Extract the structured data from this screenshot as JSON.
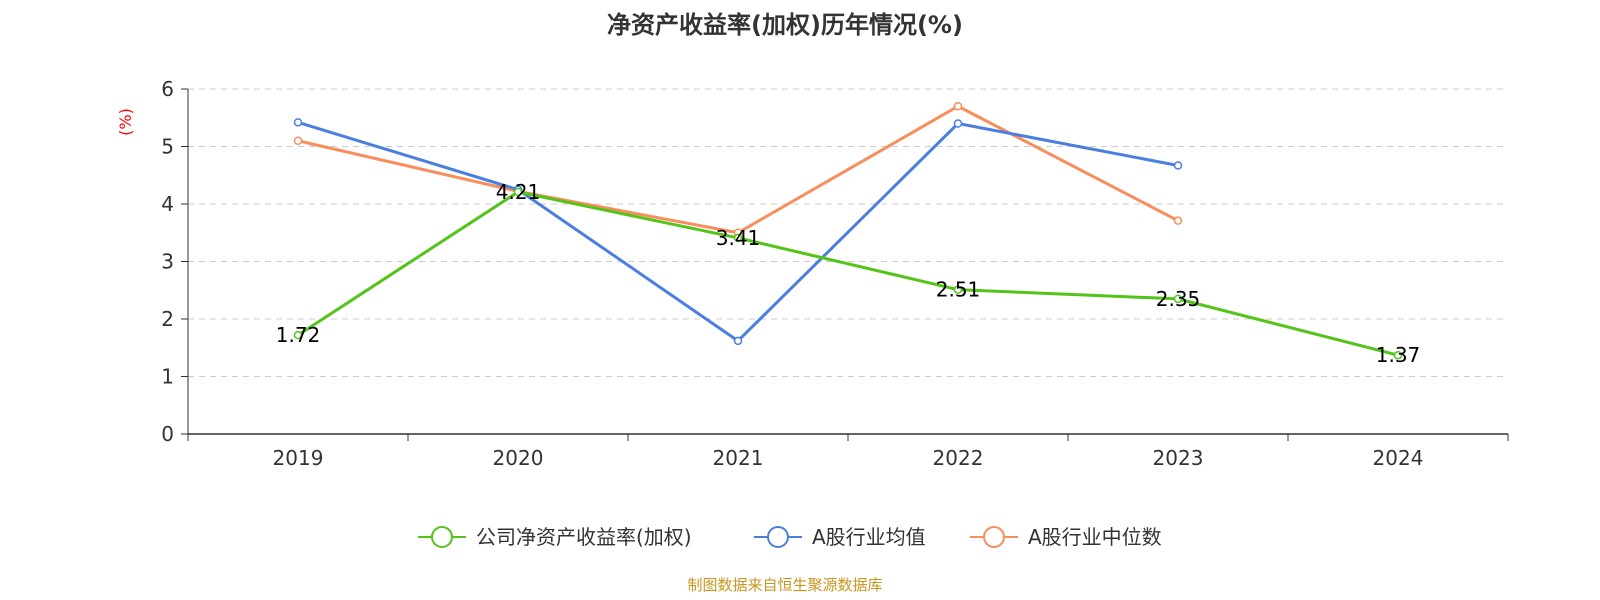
{
  "chart_data": {
    "type": "line",
    "title": "净资产收益率(加权)历年情况(%)",
    "xlabel": "",
    "ylabel": "(%)",
    "categories": [
      "2019",
      "2020",
      "2021",
      "2022",
      "2023",
      "2024"
    ],
    "ylim": [
      0,
      6
    ],
    "yticks": [
      "0",
      "1",
      "2",
      "3",
      "4",
      "5",
      "6"
    ],
    "grid": true,
    "legend_position": "bottom",
    "series": [
      {
        "name": "公司净资产收益率(加权)",
        "color": "#52c41a",
        "values": [
          1.72,
          4.21,
          3.41,
          2.51,
          2.35,
          1.37
        ],
        "labels": [
          "1.72",
          "4.21",
          "3.41",
          "2.51",
          "2.35",
          "1.37"
        ]
      },
      {
        "name": "A股行业均值",
        "color": "#4a7fe0",
        "values": [
          5.42,
          4.25,
          1.62,
          5.4,
          4.67,
          null
        ]
      },
      {
        "name": "A股行业中位数",
        "color": "#f98d5c",
        "values": [
          5.1,
          4.22,
          3.5,
          5.7,
          3.71,
          null
        ]
      }
    ]
  },
  "ylabel_color": "#ff0000",
  "source": "制图数据来自恒生聚源数据库",
  "source_color": "#c8961e"
}
